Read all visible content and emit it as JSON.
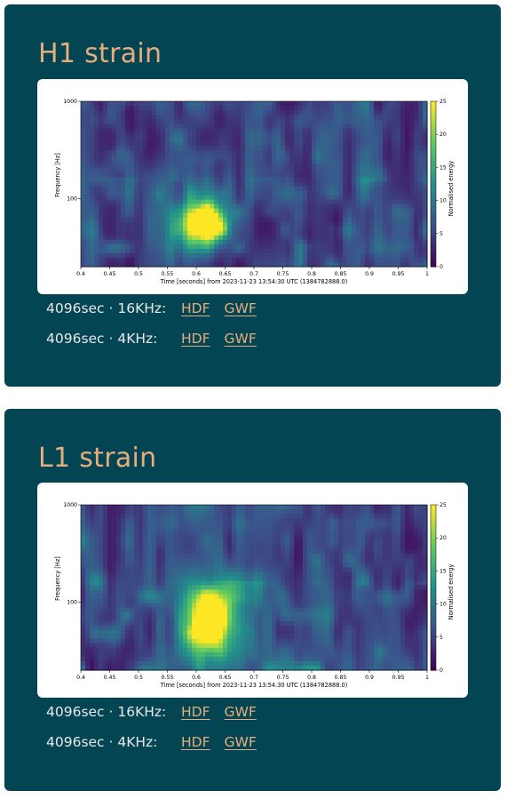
{
  "panels": [
    {
      "title": "H1 strain",
      "downloads": [
        {
          "label": "4096sec · 16KHz:",
          "hdf": "HDF",
          "gwf": "GWF"
        },
        {
          "label": "4096sec · 4KHz:",
          "hdf": "HDF",
          "gwf": "GWF"
        }
      ],
      "chart_data": {
        "type": "heatmap",
        "xlabel": "Time [seconds] from 2023-11-23 13:54:30 UTC (1384782888.0)",
        "ylabel": "Frequency [Hz]",
        "xlim": [
          0.4,
          1.0
        ],
        "ylim": [
          20,
          1000
        ],
        "yscale": "log",
        "x_ticks": [
          "0.4",
          "0.45",
          "0.5",
          "0.55",
          "0.6",
          "0.65",
          "0.7",
          "0.75",
          "0.8",
          "0.85",
          "0.9",
          "0.95",
          "1"
        ],
        "y_ticks": [
          "100",
          "1000"
        ],
        "colorbar": {
          "label": "Normalised energy",
          "range": [
            0,
            25
          ],
          "ticks": [
            "0",
            "5",
            "10",
            "15",
            "20",
            "25"
          ],
          "colormap": "viridis"
        },
        "peak": {
          "time_range": [
            0.58,
            0.65
          ],
          "freq_range": [
            35,
            85
          ],
          "energy": 25
        }
      }
    },
    {
      "title": "L1 strain",
      "downloads": [
        {
          "label": "4096sec · 16KHz:",
          "hdf": "HDF",
          "gwf": "GWF"
        },
        {
          "label": "4096sec · 4KHz:",
          "hdf": "HDF",
          "gwf": "GWF"
        }
      ],
      "chart_data": {
        "type": "heatmap",
        "xlabel": "Time [seconds] from 2023-11-23 13:54:30 UTC (1384782888.0)",
        "ylabel": "Frequency [Hz]",
        "xlim": [
          0.4,
          1.0
        ],
        "ylim": [
          20,
          1000
        ],
        "yscale": "log",
        "x_ticks": [
          "0.4",
          "0.45",
          "0.5",
          "0.55",
          "0.6",
          "0.65",
          "0.7",
          "0.75",
          "0.8",
          "0.85",
          "0.9",
          "0.95",
          "1"
        ],
        "y_ticks": [
          "100",
          "1000"
        ],
        "colorbar": {
          "label": "Normalised energy",
          "range": [
            0,
            25
          ],
          "ticks": [
            "0",
            "5",
            "10",
            "15",
            "20",
            "25"
          ],
          "colormap": "viridis"
        },
        "peak": {
          "time_range": [
            0.58,
            0.66
          ],
          "freq_range": [
            30,
            130
          ],
          "energy": 25
        }
      }
    }
  ],
  "colors": {
    "card_bg": "#034553",
    "title": "#e8ad7d",
    "link": "#e8ad7d",
    "text": "#e8e8e8",
    "page_bg": "#ffffff"
  }
}
